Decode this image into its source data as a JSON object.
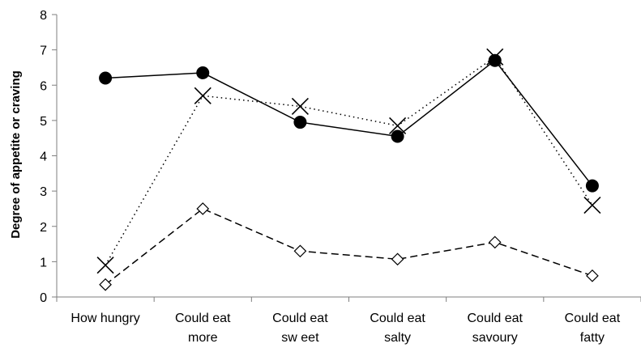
{
  "chart_data": {
    "type": "line",
    "title": "",
    "xlabel": "",
    "ylabel": "Degree of appetite or craving",
    "ylim": [
      0,
      8
    ],
    "yticks": [
      0,
      1,
      2,
      3,
      4,
      5,
      6,
      7,
      8
    ],
    "grid": false,
    "legend": "none",
    "categories": [
      [
        "How  hungry"
      ],
      [
        "Could eat",
        "more"
      ],
      [
        "Could eat",
        "sw eet"
      ],
      [
        "Could eat",
        "salty"
      ],
      [
        "Could eat",
        "savoury"
      ],
      [
        "Could eat",
        "fatty"
      ]
    ],
    "series": [
      {
        "values": [
          6.2,
          6.35,
          4.95,
          4.55,
          6.7,
          3.15
        ],
        "marker": "filled-circle",
        "line": "solid",
        "color": "#000000"
      },
      {
        "values": [
          0.9,
          5.7,
          5.4,
          4.85,
          6.8,
          2.6
        ],
        "marker": "cross",
        "line": "dotted",
        "color": "#000000"
      },
      {
        "values": [
          0.35,
          2.5,
          1.3,
          1.07,
          1.55,
          0.6
        ],
        "marker": "open-diamond",
        "line": "dashed",
        "color": "#000000"
      }
    ]
  }
}
